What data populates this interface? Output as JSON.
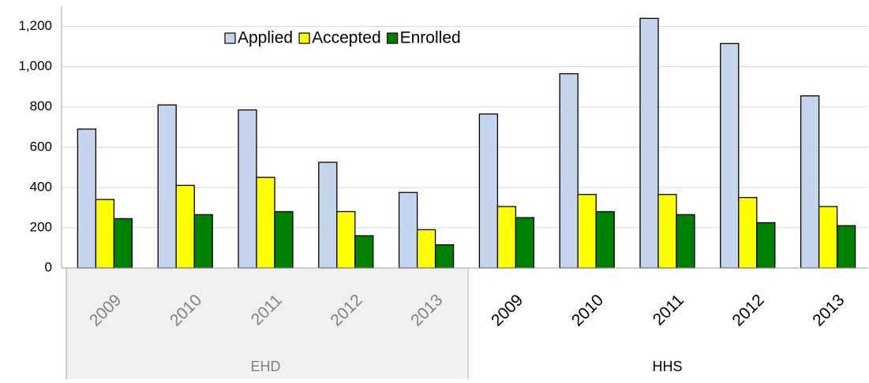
{
  "chart_data": {
    "type": "bar",
    "groups": [
      {
        "name": "EHD",
        "categories": [
          "2009",
          "2010",
          "2011",
          "2012",
          "2013"
        ]
      },
      {
        "name": "HHS",
        "categories": [
          "2009",
          "2010",
          "2011",
          "2012",
          "2013"
        ]
      }
    ],
    "series": [
      {
        "name": "Applied",
        "color": "#c6d5ee",
        "values": [
          690,
          810,
          785,
          525,
          375,
          765,
          965,
          1240,
          1115,
          855
        ]
      },
      {
        "name": "Accepted",
        "color": "#ffff00",
        "values": [
          340,
          410,
          450,
          280,
          190,
          305,
          365,
          365,
          350,
          305
        ]
      },
      {
        "name": "Enrolled",
        "color": "#008000",
        "values": [
          245,
          265,
          280,
          160,
          115,
          250,
          280,
          265,
          225,
          210
        ]
      }
    ],
    "ylim": [
      0,
      1300
    ],
    "yticks": [
      0,
      200,
      400,
      600,
      800,
      {
        "value": 1000,
        "label": "1,000"
      },
      {
        "value": 1200,
        "label": "1,200"
      }
    ],
    "grid": true,
    "legend": "top"
  }
}
